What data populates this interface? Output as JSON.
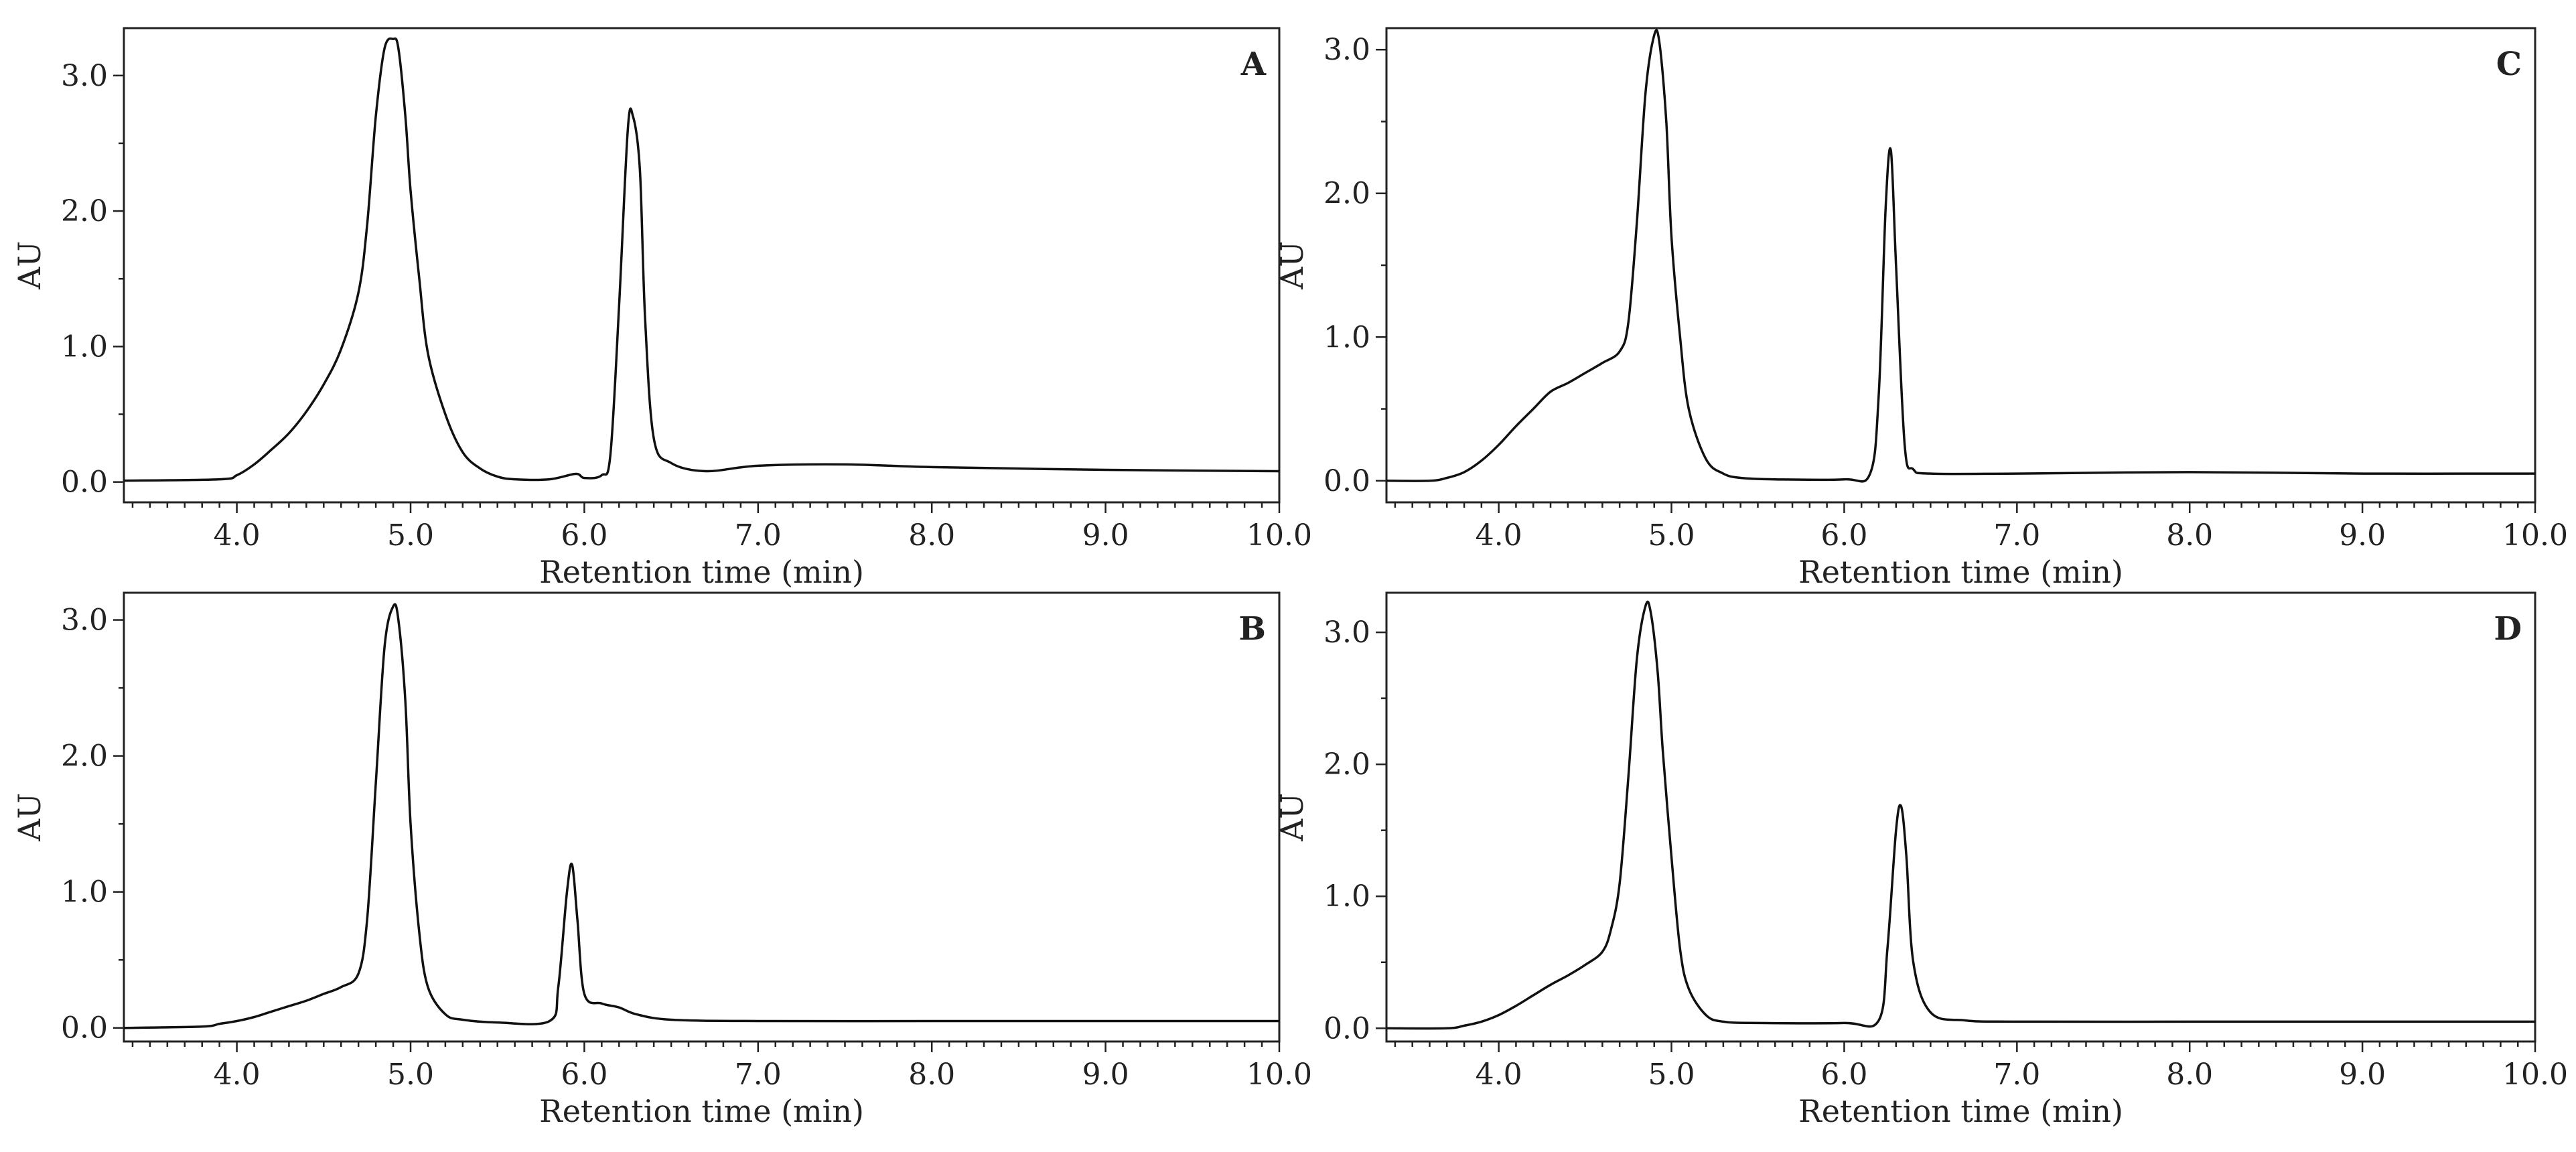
{
  "chart_data": [
    {
      "type": "line",
      "panel": "A",
      "xlabel": "Retention time (min)",
      "ylabel": "AU",
      "xlim": [
        3.35,
        10.0
      ],
      "ylim": [
        -0.15,
        3.35
      ],
      "x_ticks": [
        4.0,
        5.0,
        6.0,
        7.0,
        8.0,
        9.0,
        10.0
      ],
      "x_tick_labels": [
        "4.0",
        "5.0",
        "6.0",
        "7.0",
        "8.0",
        "9.0",
        "10.0"
      ],
      "y_ticks": [
        0,
        1,
        2,
        3
      ],
      "y_tick_labels": [
        "0.0",
        "1.0",
        "2.0",
        "3.0"
      ],
      "series": [
        {
          "x": [
            3.35,
            3.9,
            4.0,
            4.1,
            4.2,
            4.3,
            4.4,
            4.5,
            4.6,
            4.7,
            4.75,
            4.8,
            4.85,
            4.9,
            4.93,
            4.97,
            5.0,
            5.05,
            5.1,
            5.2,
            5.3,
            5.4,
            5.5,
            5.6,
            5.8,
            5.95,
            6.0,
            6.1,
            6.15,
            6.2,
            6.25,
            6.28,
            6.32,
            6.35,
            6.4,
            6.5,
            6.7,
            7.0,
            7.5,
            8.0,
            9.0,
            10.0
          ],
          "y": [
            0.01,
            0.02,
            0.05,
            0.13,
            0.24,
            0.36,
            0.52,
            0.72,
            0.98,
            1.4,
            1.9,
            2.7,
            3.2,
            3.27,
            3.2,
            2.7,
            2.15,
            1.5,
            0.95,
            0.5,
            0.22,
            0.1,
            0.04,
            0.02,
            0.02,
            0.06,
            0.03,
            0.05,
            0.2,
            1.3,
            2.6,
            2.7,
            2.3,
            1.2,
            0.32,
            0.14,
            0.08,
            0.12,
            0.13,
            0.11,
            0.09,
            0.08
          ]
        }
      ]
    },
    {
      "type": "line",
      "panel": "C",
      "xlabel": "Retention time (min)",
      "ylabel": "AU",
      "xlim": [
        3.35,
        10.0
      ],
      "ylim": [
        -0.15,
        3.15
      ],
      "x_ticks": [
        4.0,
        5.0,
        6.0,
        7.0,
        8.0,
        9.0,
        10.0
      ],
      "x_tick_labels": [
        "4.0",
        "5.0",
        "6.0",
        "7.0",
        "8.0",
        "9.0",
        "10.0"
      ],
      "y_ticks": [
        0,
        1,
        2,
        3
      ],
      "y_tick_labels": [
        "0.0",
        "1.0",
        "2.0",
        "3.0"
      ],
      "series": [
        {
          "x": [
            3.35,
            3.6,
            3.7,
            3.8,
            3.9,
            4.0,
            4.1,
            4.2,
            4.3,
            4.4,
            4.5,
            4.6,
            4.7,
            4.75,
            4.8,
            4.85,
            4.9,
            4.93,
            4.97,
            5.0,
            5.05,
            5.1,
            5.2,
            5.3,
            5.4,
            5.6,
            6.0,
            6.15,
            6.2,
            6.24,
            6.27,
            6.3,
            6.35,
            6.4,
            6.5,
            7.0,
            8.0,
            9.0,
            10.0
          ],
          "y": [
            0.0,
            0.0,
            0.02,
            0.06,
            0.14,
            0.25,
            0.38,
            0.5,
            0.62,
            0.68,
            0.75,
            0.82,
            0.9,
            1.1,
            1.8,
            2.7,
            3.1,
            3.05,
            2.5,
            1.7,
            1.0,
            0.5,
            0.15,
            0.05,
            0.02,
            0.01,
            0.01,
            0.05,
            0.6,
            1.9,
            2.3,
            1.5,
            0.25,
            0.08,
            0.05,
            0.05,
            0.06,
            0.05,
            0.05
          ]
        }
      ]
    },
    {
      "type": "line",
      "panel": "B",
      "xlabel": "Retention time (min)",
      "ylabel": "AU",
      "xlim": [
        3.35,
        10.0
      ],
      "ylim": [
        -0.1,
        3.2
      ],
      "x_ticks": [
        4.0,
        5.0,
        6.0,
        7.0,
        8.0,
        9.0,
        10.0
      ],
      "x_tick_labels": [
        "4.0",
        "5.0",
        "6.0",
        "7.0",
        "8.0",
        "9.0",
        "10.0"
      ],
      "y_ticks": [
        0,
        1,
        2,
        3
      ],
      "y_tick_labels": [
        "0.0",
        "1.0",
        "2.0",
        "3.0"
      ],
      "series": [
        {
          "x": [
            3.35,
            3.8,
            3.9,
            4.0,
            4.1,
            4.2,
            4.3,
            4.4,
            4.5,
            4.6,
            4.7,
            4.75,
            4.8,
            4.85,
            4.9,
            4.93,
            4.97,
            5.0,
            5.05,
            5.1,
            5.2,
            5.3,
            5.5,
            5.8,
            5.85,
            5.9,
            5.93,
            5.96,
            6.0,
            6.1,
            6.2,
            6.3,
            6.5,
            7.0,
            8.0,
            9.0,
            10.0
          ],
          "y": [
            0.0,
            0.01,
            0.03,
            0.05,
            0.08,
            0.12,
            0.16,
            0.2,
            0.25,
            0.3,
            0.4,
            0.8,
            1.8,
            2.8,
            3.1,
            3.0,
            2.4,
            1.5,
            0.7,
            0.3,
            0.1,
            0.06,
            0.04,
            0.05,
            0.3,
            1.0,
            1.2,
            0.8,
            0.25,
            0.18,
            0.15,
            0.1,
            0.06,
            0.05,
            0.05,
            0.05,
            0.05
          ]
        }
      ]
    },
    {
      "type": "line",
      "panel": "D",
      "xlabel": "Retention time (min)",
      "ylabel": "AU",
      "xlim": [
        3.35,
        10.0
      ],
      "ylim": [
        -0.1,
        3.3
      ],
      "x_ticks": [
        4.0,
        5.0,
        6.0,
        7.0,
        8.0,
        9.0,
        10.0
      ],
      "x_tick_labels": [
        "4.0",
        "5.0",
        "6.0",
        "7.0",
        "8.0",
        "9.0",
        "10.0"
      ],
      "y_ticks": [
        0,
        1,
        2,
        3
      ],
      "y_tick_labels": [
        "0.0",
        "1.0",
        "2.0",
        "3.0"
      ],
      "series": [
        {
          "x": [
            3.35,
            3.7,
            3.8,
            3.9,
            4.0,
            4.1,
            4.2,
            4.3,
            4.4,
            4.5,
            4.6,
            4.65,
            4.7,
            4.75,
            4.8,
            4.85,
            4.88,
            4.92,
            4.95,
            5.0,
            5.05,
            5.1,
            5.2,
            5.3,
            5.5,
            6.0,
            6.2,
            6.25,
            6.3,
            6.33,
            6.36,
            6.4,
            6.5,
            6.7,
            7.0,
            8.0,
            9.0,
            10.0
          ],
          "y": [
            0.0,
            0.0,
            0.02,
            0.05,
            0.1,
            0.17,
            0.25,
            0.33,
            0.4,
            0.48,
            0.58,
            0.75,
            1.1,
            1.9,
            2.8,
            3.2,
            3.15,
            2.7,
            2.1,
            1.3,
            0.6,
            0.3,
            0.1,
            0.05,
            0.04,
            0.04,
            0.06,
            0.6,
            1.5,
            1.68,
            1.3,
            0.5,
            0.12,
            0.06,
            0.05,
            0.05,
            0.05,
            0.05
          ]
        }
      ]
    }
  ]
}
